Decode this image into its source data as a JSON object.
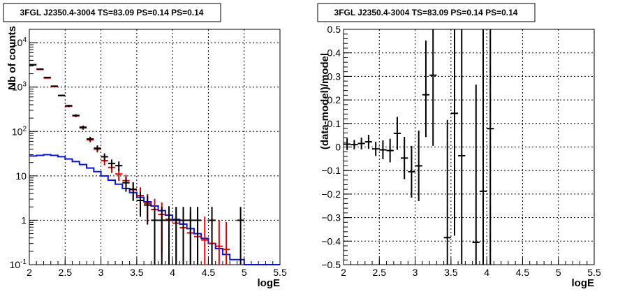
{
  "window": {
    "left_title": "3FGL J2350.4-3004 TS=83.09 PS=0.14 PS=0.14",
    "right_title": "3FGL J2350.4-3004 TS=83.09 PS=0.14 PS=0.14"
  },
  "chart_data": [
    {
      "type": "line",
      "title": "3FGL J2350.4-3004 TS=83.09 PS=0.14 PS=0.14",
      "xlabel": "logE",
      "ylabel": "Nb of counts",
      "yscale": "log",
      "xlim": [
        2,
        5.5
      ],
      "ylim": [
        0.1,
        20000
      ],
      "grid": true,
      "x_ticks": [
        "2",
        "2.5",
        "3",
        "3.5",
        "4",
        "4.5",
        "5",
        "5.5"
      ],
      "y_ticks": [
        "10^-1",
        "1",
        "10",
        "10^2",
        "10^3",
        "10^4"
      ],
      "series": [
        {
          "color": "#000000",
          "bin_width": 0.1,
          "x": [
            2.05,
            2.15,
            2.25,
            2.35,
            2.45,
            2.55,
            2.65,
            2.75,
            2.85,
            2.95,
            3.05,
            3.15,
            3.25,
            3.35,
            3.45,
            3.55,
            3.65,
            3.75,
            3.85,
            3.95,
            4.05,
            4.15,
            4.25,
            4.35,
            4.55,
            4.95
          ],
          "y": [
            3200,
            2550,
            1650,
            1050,
            650,
            380,
            230,
            125,
            68,
            42,
            27,
            19,
            17,
            7,
            5,
            2.8,
            2.2,
            1,
            1,
            1,
            1,
            1,
            1,
            1,
            1,
            1
          ],
          "err_low": [
            55,
            50,
            40,
            32,
            25,
            19,
            15,
            11,
            8,
            6.5,
            5.2,
            4.4,
            4.1,
            2.6,
            2.2,
            1.6,
            1.4,
            1,
            1,
            1,
            1,
            1,
            1,
            1,
            1,
            1
          ],
          "err_high": [
            55,
            50,
            40,
            32,
            25,
            19,
            15,
            11,
            8,
            6.5,
            5.2,
            4.4,
            4.1,
            2.6,
            2.2,
            1.6,
            1.4,
            1,
            1,
            1,
            1,
            1,
            1,
            1,
            1,
            1
          ]
        },
        {
          "color": "#e00000",
          "bin_width": 0.1,
          "x": [
            2.05,
            2.15,
            2.25,
            2.35,
            2.45,
            2.55,
            2.65,
            2.75,
            2.85,
            2.95,
            3.05,
            3.15,
            3.25,
            3.35,
            3.45,
            3.55,
            3.65,
            3.75,
            3.85,
            3.95,
            4.05,
            4.15,
            4.25,
            4.35,
            4.45,
            4.55,
            4.65,
            4.75
          ],
          "y": [
            3150,
            2500,
            1600,
            1030,
            640,
            370,
            225,
            120,
            65,
            40,
            22,
            15.5,
            11,
            7.8,
            4.9,
            3.6,
            2.4,
            1.75,
            1.35,
            1.05,
            0.86,
            0.68,
            0.52,
            0.43,
            0.36,
            0.3,
            0.26,
            0.22
          ],
          "err_low": [
            56,
            50,
            40,
            32,
            25,
            19,
            15,
            11,
            8,
            6.3,
            4.7,
            3.9,
            3.3,
            2.8,
            2.2,
            1.9,
            1.5,
            1.3,
            1.16,
            1.0,
            0.8,
            0.6,
            0.45,
            0.35,
            0.28,
            0.22,
            0.18,
            0.14
          ],
          "err_high": [
            56,
            50,
            40,
            32,
            25,
            19,
            15,
            11,
            8,
            6.3,
            4.7,
            3.9,
            3.3,
            2.8,
            2.2,
            1.9,
            1.5,
            1.3,
            1.16,
            1.05,
            1.1,
            1.0,
            0.95,
            0.9,
            0.85,
            0.8,
            0.75,
            0.7
          ]
        },
        {
          "color": "#0a14d6",
          "step": true,
          "edges": [
            2.0,
            2.1,
            2.2,
            2.3,
            2.4,
            2.5,
            2.6,
            2.7,
            2.8,
            2.9,
            3.0,
            3.1,
            3.2,
            3.3,
            3.4,
            3.5,
            3.6,
            3.7,
            3.8,
            3.9,
            4.0,
            4.1,
            4.2,
            4.3,
            4.4,
            4.5,
            4.6,
            4.7,
            4.8,
            5.0,
            5.5
          ],
          "y": [
            28,
            29,
            30,
            29,
            27,
            24,
            21,
            18,
            15,
            12.5,
            10,
            8,
            6.5,
            5.2,
            4.2,
            3.3,
            2.6,
            2.1,
            1.65,
            1.3,
            1.05,
            0.82,
            0.65,
            0.5,
            0.39,
            0.3,
            0.23,
            0.17,
            0.13,
            0.1
          ]
        }
      ]
    },
    {
      "type": "scatter",
      "title": "3FGL J2350.4-3004 TS=83.09 PS=0.14 PS=0.14",
      "xlabel": "logE",
      "ylabel": "(data-model)/model",
      "xlim": [
        2,
        5.5
      ],
      "ylim": [
        -0.5,
        0.5
      ],
      "grid": true,
      "x_ticks": [
        "2",
        "2.5",
        "3",
        "3.5",
        "4",
        "4.5",
        "5",
        "5.5"
      ],
      "y_ticks": [
        "-0.5",
        "-0.4",
        "-0.3",
        "-0.2",
        "-0.1",
        "0",
        "0.1",
        "0.2",
        "0.3",
        "0.4",
        "0.5"
      ],
      "series": [
        {
          "color": "#000000",
          "bin_width": 0.1,
          "x": [
            2.05,
            2.15,
            2.25,
            2.35,
            2.45,
            2.55,
            2.65,
            2.75,
            2.85,
            2.95,
            3.05,
            3.15,
            3.25,
            3.45,
            3.55,
            3.65,
            3.85,
            3.95,
            4.05
          ],
          "y": [
            0.012,
            0.01,
            0.015,
            0.022,
            -0.008,
            -0.012,
            -0.015,
            0.058,
            -0.047,
            -0.105,
            -0.08,
            0.222,
            0.305,
            -0.385,
            0.143,
            -0.037,
            -0.405,
            -0.188,
            0.078
          ],
          "err_low": [
            0.025,
            0.02,
            0.025,
            0.03,
            0.03,
            0.04,
            0.05,
            0.07,
            0.09,
            0.11,
            0.15,
            0.18,
            0.3,
            0.5,
            0.52,
            0.46,
            0.6,
            0.6,
            0.6
          ],
          "err_high": [
            0.025,
            0.02,
            0.025,
            0.03,
            0.03,
            0.04,
            0.05,
            0.07,
            0.09,
            0.11,
            0.15,
            0.23,
            0.21,
            0.5,
            0.4,
            0.56,
            0.67,
            0.7,
            0.5
          ]
        }
      ]
    }
  ]
}
